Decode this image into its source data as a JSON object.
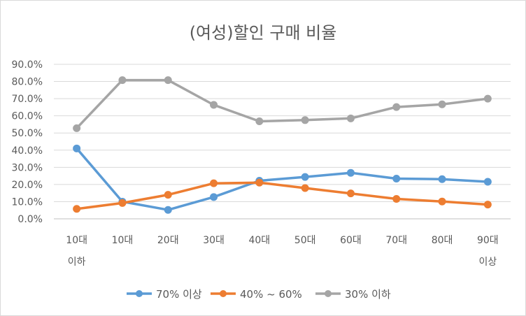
{
  "chart_data": {
    "type": "line",
    "title": "(여성)할인 구매 비율",
    "categories": [
      [
        "10대",
        "이하"
      ],
      [
        "10대"
      ],
      [
        "20대"
      ],
      [
        "30대"
      ],
      [
        "40대"
      ],
      [
        "50대"
      ],
      [
        "60대"
      ],
      [
        "70대"
      ],
      [
        "80대"
      ],
      [
        "90대",
        "이상"
      ]
    ],
    "y_ticks": [
      "0.0%",
      "10.0%",
      "20.0%",
      "30.0%",
      "40.0%",
      "50.0%",
      "60.0%",
      "70.0%",
      "80.0%",
      "90.0%"
    ],
    "ylim": [
      0,
      90
    ],
    "grid": true,
    "legend_position": "bottom",
    "series": [
      {
        "name": "70% 이상",
        "color": "#5b9bd5",
        "values": [
          41.0,
          10.0,
          5.2,
          12.7,
          22.2,
          24.4,
          26.8,
          23.4,
          23.1,
          21.6
        ]
      },
      {
        "name": "40% ~ 60%",
        "color": "#ed7d31",
        "values": [
          5.8,
          9.2,
          14.0,
          20.7,
          21.1,
          17.9,
          14.8,
          11.6,
          10.1,
          8.3
        ]
      },
      {
        "name": "30% 이하",
        "color": "#a5a5a5",
        "values": [
          52.8,
          80.8,
          80.8,
          66.4,
          56.8,
          57.5,
          58.5,
          65.1,
          66.7,
          70.0
        ]
      }
    ]
  }
}
